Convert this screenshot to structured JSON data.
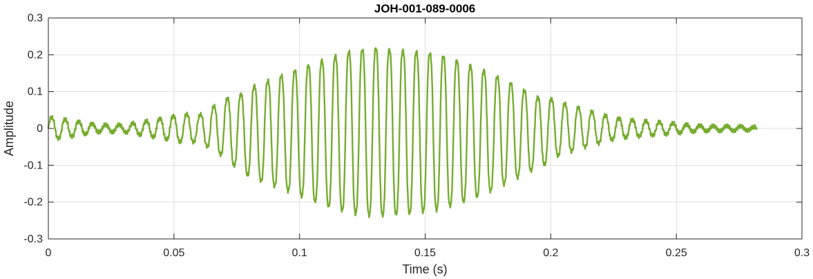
{
  "chart_data": {
    "type": "line",
    "title": "JOH-001-089-0006",
    "xlabel": "Time (s)",
    "ylabel": "Amplitude",
    "xlim": [
      0,
      0.3
    ],
    "ylim": [
      -0.3,
      0.3
    ],
    "x_ticks": [
      0,
      0.05,
      0.1,
      0.15,
      0.2,
      0.25,
      0.3
    ],
    "x_tick_labels": [
      "0",
      "0.05",
      "0.1",
      "0.15",
      "0.2",
      "0.25",
      "0.3"
    ],
    "y_ticks": [
      -0.3,
      -0.2,
      -0.1,
      0,
      0.1,
      0.2,
      0.3
    ],
    "y_tick_labels": [
      "-0.3",
      "-0.2",
      "-0.1",
      "0",
      "0.1",
      "0.2",
      "0.3"
    ],
    "grid": true,
    "series": [
      {
        "color": "#77ac30",
        "x": [
          0.0,
          0.01,
          0.02,
          0.03,
          0.04,
          0.05,
          0.055,
          0.06,
          0.065,
          0.07,
          0.075,
          0.08,
          0.09,
          0.1,
          0.11,
          0.12,
          0.13,
          0.137,
          0.145,
          0.155,
          0.165,
          0.175,
          0.185,
          0.195,
          0.205,
          0.215,
          0.225,
          0.235,
          0.245,
          0.255,
          0.265,
          0.275,
          0.282
        ],
        "envelope": [
          0.035,
          0.025,
          0.012,
          0.01,
          0.025,
          0.04,
          0.045,
          0.04,
          0.065,
          0.09,
          0.11,
          0.14,
          0.17,
          0.2,
          0.23,
          0.255,
          0.265,
          0.26,
          0.255,
          0.245,
          0.22,
          0.19,
          0.15,
          0.11,
          0.08,
          0.055,
          0.035,
          0.025,
          0.018,
          0.012,
          0.008,
          0.006,
          0.004
        ],
        "frequency_hz": 186
      }
    ]
  }
}
